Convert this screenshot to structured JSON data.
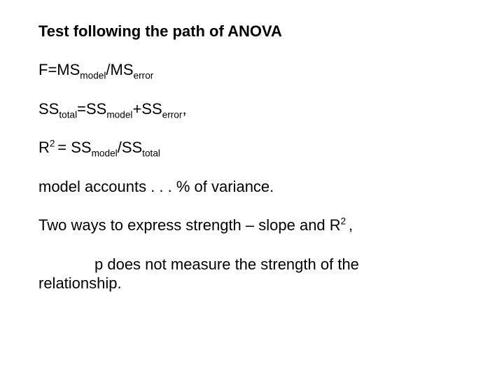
{
  "title": "Test following the path of ANOVA",
  "line1": {
    "a": "F=MS",
    "b": "model",
    "c": "/MS",
    "d": "error"
  },
  "line2": {
    "a": "SS",
    "b": "total",
    "c": "=SS",
    "d": "model",
    "e": "+SS",
    "f": "error",
    "g": ","
  },
  "line3": {
    "a": "R",
    "b": "2 ",
    "c": "= SS",
    "d": "model",
    "e": "/SS",
    "f": "total"
  },
  "line4": "model accounts  . . . % of variance.",
  "line5": {
    "a": "Two ways to express strength – slope and R",
    "b": "2 ",
    "c": ","
  },
  "line6a": "p does not measure the strength of the",
  "line6b": "relationship."
}
